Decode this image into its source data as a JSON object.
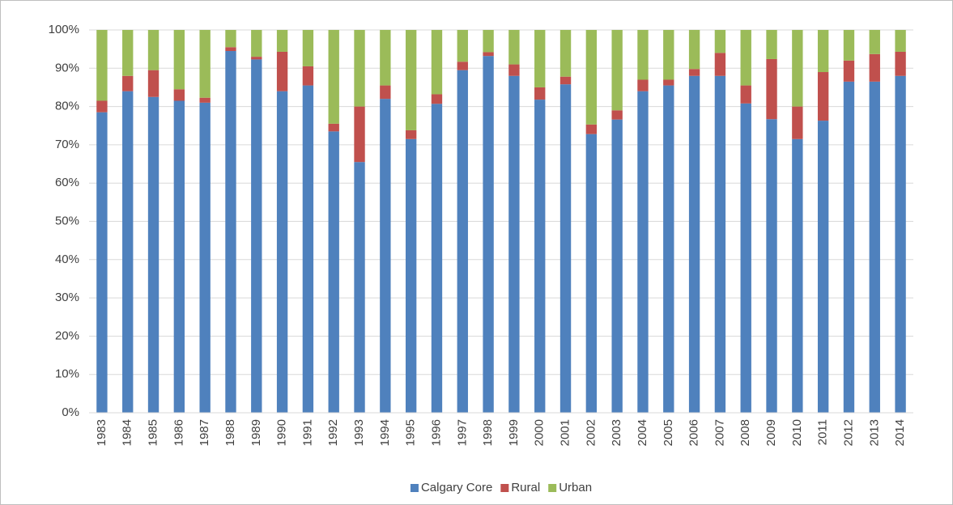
{
  "chart_data": {
    "type": "stacked_bar_100",
    "categories": [
      "1983",
      "1984",
      "1985",
      "1986",
      "1987",
      "1988",
      "1989",
      "1990",
      "1991",
      "1992",
      "1993",
      "1994",
      "1995",
      "1996",
      "1997",
      "1998",
      "1999",
      "2000",
      "2001",
      "2002",
      "2003",
      "2004",
      "2005",
      "2006",
      "2007",
      "2008",
      "2009",
      "2010",
      "2011",
      "2012",
      "2013",
      "2014"
    ],
    "series": [
      {
        "name": "Calgary Core",
        "color": "#4f81bd",
        "values": [
          78.5,
          84,
          82.5,
          81.5,
          81,
          94.5,
          92.3,
          84,
          85.5,
          73.5,
          65.5,
          82,
          71.5,
          80.7,
          89.5,
          93.2,
          88,
          81.8,
          85.8,
          72.8,
          76.6,
          84,
          85.5,
          88,
          88,
          80.8,
          76.7,
          71.5,
          76.3,
          86.5,
          86.5,
          88
        ]
      },
      {
        "name": "Rural",
        "color": "#c0504d",
        "values": [
          3,
          4,
          7,
          3,
          1.3,
          1,
          0.7,
          10.3,
          5,
          2,
          14.5,
          3.5,
          2.3,
          2.5,
          2.2,
          1,
          3,
          3.2,
          2,
          2.5,
          2.4,
          3,
          1.5,
          1.8,
          6,
          4.7,
          15.7,
          8.5,
          12.7,
          5.5,
          7.2,
          6.3
        ]
      },
      {
        "name": "Urban",
        "color": "#9bbb59",
        "values": [
          18.5,
          12,
          10.5,
          15.5,
          17.7,
          4.5,
          7,
          5.7,
          9.5,
          24.5,
          20,
          14.5,
          26.2,
          16.8,
          8.3,
          5.8,
          9,
          15,
          12.2,
          24.7,
          21,
          13,
          13,
          10.2,
          6,
          14.5,
          7.6,
          20,
          11,
          8,
          6.3,
          5.7
        ]
      }
    ],
    "ylim": [
      0,
      100
    ],
    "yticks": [
      {
        "value": 0,
        "label": "0%"
      },
      {
        "value": 10,
        "label": "10%"
      },
      {
        "value": 20,
        "label": "20%"
      },
      {
        "value": 30,
        "label": "30%"
      },
      {
        "value": 40,
        "label": "40%"
      },
      {
        "value": 50,
        "label": "50%"
      },
      {
        "value": 60,
        "label": "60%"
      },
      {
        "value": 70,
        "label": "70%"
      },
      {
        "value": 80,
        "label": "80%"
      },
      {
        "value": 90,
        "label": "90%"
      },
      {
        "value": 100,
        "label": "100%"
      }
    ],
    "grid": true,
    "legend": "bottom"
  }
}
